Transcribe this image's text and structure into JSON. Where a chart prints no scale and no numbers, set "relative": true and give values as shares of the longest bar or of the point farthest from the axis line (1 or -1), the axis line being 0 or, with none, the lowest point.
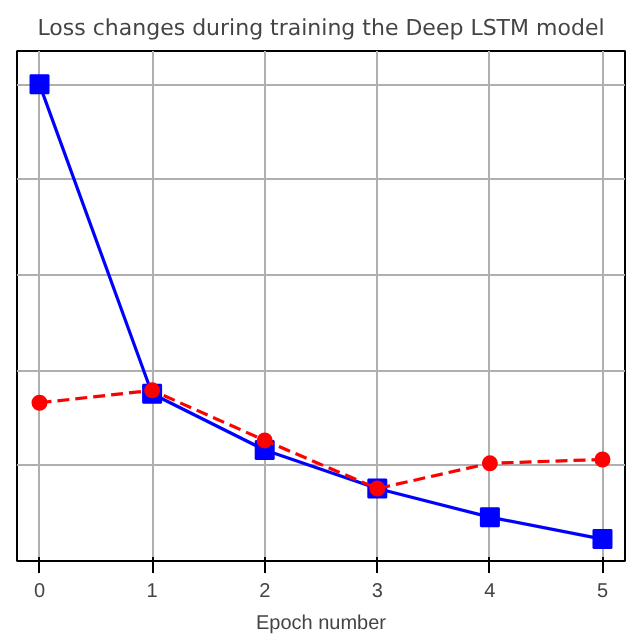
{
  "chart_data": {
    "type": "line",
    "title": "Loss changes during training the Deep LSTM model",
    "xlabel": "Epoch number",
    "x": [
      0,
      1,
      2,
      3,
      4,
      5
    ],
    "xlim": [
      -0.2,
      5.2
    ],
    "xticks": [
      0,
      1,
      2,
      3,
      4,
      5
    ],
    "relative": true,
    "grid": true,
    "series": [
      {
        "color": "#0000ff",
        "values": [
          1,
          0.351,
          0.233,
          0.152,
          0.092,
          0.046
        ],
        "marker": "square",
        "line_style": "solid"
      },
      {
        "color": "#ff0000",
        "values": [
          0.332,
          0.358,
          0.253,
          0.152,
          0.205,
          0.213
        ],
        "marker": "circle",
        "line_style": "dashed"
      }
    ]
  }
}
